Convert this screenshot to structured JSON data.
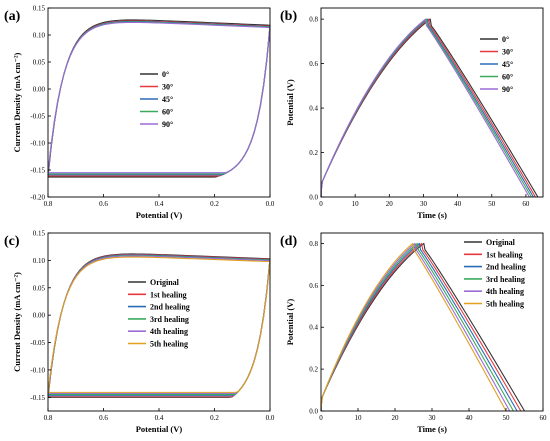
{
  "chart_data": [
    {
      "panel_label": "(a)",
      "type": "line",
      "xlabel": "Potential (V)",
      "ylabel": "Current Density (mA cm⁻²)",
      "xlim": [
        0.8,
        0.0
      ],
      "ylim": [
        -0.2,
        0.15
      ],
      "x_reversed": true,
      "xticks": [
        0.8,
        0.6,
        0.4,
        0.2,
        0.0
      ],
      "xtick_labels": [
        "0.8",
        "0.6",
        "0.4",
        "0.2",
        "0.0"
      ],
      "yticks": [
        -0.2,
        -0.15,
        -0.1,
        -0.05,
        0,
        0.05,
        0.1,
        0.15
      ],
      "ytick_labels": [
        "-0.20",
        "-0.15",
        "-0.10",
        "-0.05",
        "0.00",
        "0.05",
        "0.10",
        "0.15"
      ],
      "legend_position": "center",
      "series": [
        {
          "name": "0°",
          "color": "#333333",
          "i_top": 0.136,
          "i_bottom": -0.163
        },
        {
          "name": "30°",
          "color": "#e8393f",
          "i_top": 0.134,
          "i_bottom": -0.161
        },
        {
          "name": "45°",
          "color": "#2b6cb8",
          "i_top": 0.133,
          "i_bottom": -0.159
        },
        {
          "name": "60°",
          "color": "#3aaa5c",
          "i_top": 0.132,
          "i_bottom": -0.157
        },
        {
          "name": "90°",
          "color": "#9b6bd6",
          "i_top": 0.131,
          "i_bottom": -0.155
        }
      ]
    },
    {
      "panel_label": "(b)",
      "type": "line",
      "xlabel": "Time (s)",
      "ylabel": "Potential (V)",
      "xlim": [
        0,
        65
      ],
      "ylim": [
        0,
        0.85
      ],
      "xticks": [
        0,
        10,
        20,
        30,
        40,
        50,
        60
      ],
      "xtick_labels": [
        "0",
        "10",
        "20",
        "30",
        "40",
        "50",
        "60"
      ],
      "yticks": [
        0,
        0.2,
        0.4,
        0.6,
        0.8
      ],
      "ytick_labels": [
        "0.0",
        "0.2",
        "0.4",
        "0.6",
        "0.8"
      ],
      "legend_position": "top-right",
      "series": [
        {
          "name": "0°",
          "color": "#333333",
          "t_peak": 32.0,
          "t_end": 63.5
        },
        {
          "name": "30°",
          "color": "#e8393f",
          "t_peak": 31.6,
          "t_end": 62.8
        },
        {
          "name": "45°",
          "color": "#2b6cb8",
          "t_peak": 31.2,
          "t_end": 62.2
        },
        {
          "name": "60°",
          "color": "#3aaa5c",
          "t_peak": 30.9,
          "t_end": 61.6
        },
        {
          "name": "90°",
          "color": "#9b6bd6",
          "t_peak": 30.6,
          "t_end": 61.0
        }
      ]
    },
    {
      "panel_label": "(c)",
      "type": "line",
      "xlabel": "Potential (V)",
      "ylabel": "Current Density (mA cm⁻²)",
      "xlim": [
        0.8,
        0.0
      ],
      "ylim": [
        -0.175,
        0.15
      ],
      "x_reversed": true,
      "xticks": [
        0.8,
        0.6,
        0.4,
        0.2,
        0.0
      ],
      "xtick_labels": [
        "0.8",
        "0.6",
        "0.4",
        "0.2",
        "0.0"
      ],
      "yticks": [
        -0.15,
        -0.1,
        -0.05,
        0,
        0.05,
        0.1,
        0.15
      ],
      "ytick_labels": [
        "-0.15",
        "-0.10",
        "-0.05",
        "0.00",
        "0.05",
        "0.10",
        "0.15"
      ],
      "legend_position": "center",
      "series": [
        {
          "name": "Original",
          "color": "#333333",
          "i_top": 0.119,
          "i_bottom": -0.15
        },
        {
          "name": "1st healing",
          "color": "#e8393f",
          "i_top": 0.118,
          "i_bottom": -0.149
        },
        {
          "name": "2nd healing",
          "color": "#2b6cb8",
          "i_top": 0.117,
          "i_bottom": -0.147
        },
        {
          "name": "3rd healing",
          "color": "#3aaa5c",
          "i_top": 0.116,
          "i_bottom": -0.145
        },
        {
          "name": "4th healing",
          "color": "#9b6bd6",
          "i_top": 0.115,
          "i_bottom": -0.143
        },
        {
          "name": "5th healing",
          "color": "#e0a020",
          "i_top": 0.113,
          "i_bottom": -0.141
        }
      ]
    },
    {
      "panel_label": "(d)",
      "type": "line",
      "xlabel": "Time (s)",
      "ylabel": "Potential (V)",
      "xlim": [
        0,
        60
      ],
      "ylim": [
        0,
        0.85
      ],
      "xticks": [
        0,
        10,
        20,
        30,
        40,
        50,
        60
      ],
      "xtick_labels": [
        "0",
        "10",
        "20",
        "30",
        "40",
        "50",
        "60"
      ],
      "yticks": [
        0,
        0.2,
        0.4,
        0.6,
        0.8
      ],
      "ytick_labels": [
        "0.0",
        "0.2",
        "0.4",
        "0.6",
        "0.8"
      ],
      "legend_position": "top-right",
      "series": [
        {
          "name": "Original",
          "color": "#333333",
          "t_peak": 27.8,
          "t_end": 55.0
        },
        {
          "name": "1st healing",
          "color": "#e8393f",
          "t_peak": 27.2,
          "t_end": 54.0
        },
        {
          "name": "2nd healing",
          "color": "#2b6cb8",
          "t_peak": 26.6,
          "t_end": 53.0
        },
        {
          "name": "3rd healing",
          "color": "#3aaa5c",
          "t_peak": 26.0,
          "t_end": 52.0
        },
        {
          "name": "4th healing",
          "color": "#9b6bd6",
          "t_peak": 25.4,
          "t_end": 51.0
        },
        {
          "name": "5th healing",
          "color": "#e0a020",
          "t_peak": 24.8,
          "t_end": 50.0
        }
      ]
    }
  ]
}
